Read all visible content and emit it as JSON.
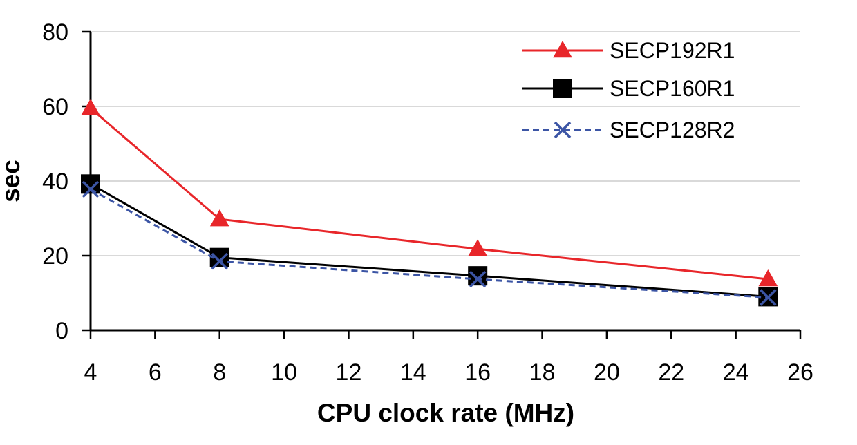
{
  "chart_data": {
    "type": "line",
    "title": "",
    "xlabel": "CPU clock rate (MHz)",
    "ylabel": "sec",
    "xlim": [
      4,
      26
    ],
    "ylim": [
      0,
      80
    ],
    "xticks": [
      "4",
      "6",
      "8",
      "10",
      "12",
      "14",
      "16",
      "18",
      "20",
      "22",
      "24",
      "26"
    ],
    "yticks": [
      "0",
      "20",
      "40",
      "60",
      "80"
    ],
    "grid": "horizontal",
    "legend_position": "top-right",
    "series": [
      {
        "name": "SECP192R1",
        "color": "#e8262a",
        "marker": "triangle",
        "dash": "solid",
        "x": [
          4,
          8,
          16,
          25
        ],
        "values": [
          59.5,
          29.8,
          21.8,
          13.7
        ]
      },
      {
        "name": "SECP160R1",
        "color": "#000000",
        "marker": "square",
        "dash": "solid",
        "x": [
          4,
          8,
          16,
          25
        ],
        "values": [
          39.2,
          19.5,
          14.6,
          9.0
        ]
      },
      {
        "name": "SECP128R2",
        "color": "#3c55a5",
        "marker": "x",
        "dash": "dashed",
        "x": [
          4,
          8,
          16,
          25
        ],
        "values": [
          37.8,
          18.5,
          13.7,
          8.8
        ]
      }
    ]
  }
}
